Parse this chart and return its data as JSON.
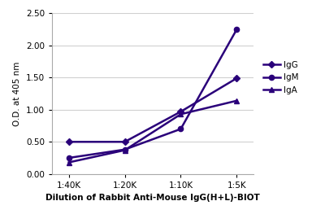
{
  "x_labels": [
    "1:40K",
    "1:20K",
    "1:10K",
    "1:5K"
  ],
  "x_values": [
    1,
    2,
    3,
    4
  ],
  "IgG": [
    0.5,
    0.5,
    0.97,
    1.49
  ],
  "IgM": [
    0.25,
    0.38,
    0.7,
    2.25
  ],
  "IgA": [
    0.18,
    0.37,
    0.93,
    1.14
  ],
  "line_color": "#2A007A",
  "ylabel": "O.D. at 405 nm",
  "xlabel": "Dilution of Rabbit Anti-Mouse IgG(H+L)-BIOT",
  "ylim": [
    0.0,
    2.5
  ],
  "yticks": [
    0.0,
    0.5,
    1.0,
    1.5,
    2.0,
    2.5
  ],
  "legend_labels": [
    "IgG",
    "IgM",
    "IgA"
  ],
  "bg_color": "#ffffff",
  "grid_color": "#d0d0d0"
}
